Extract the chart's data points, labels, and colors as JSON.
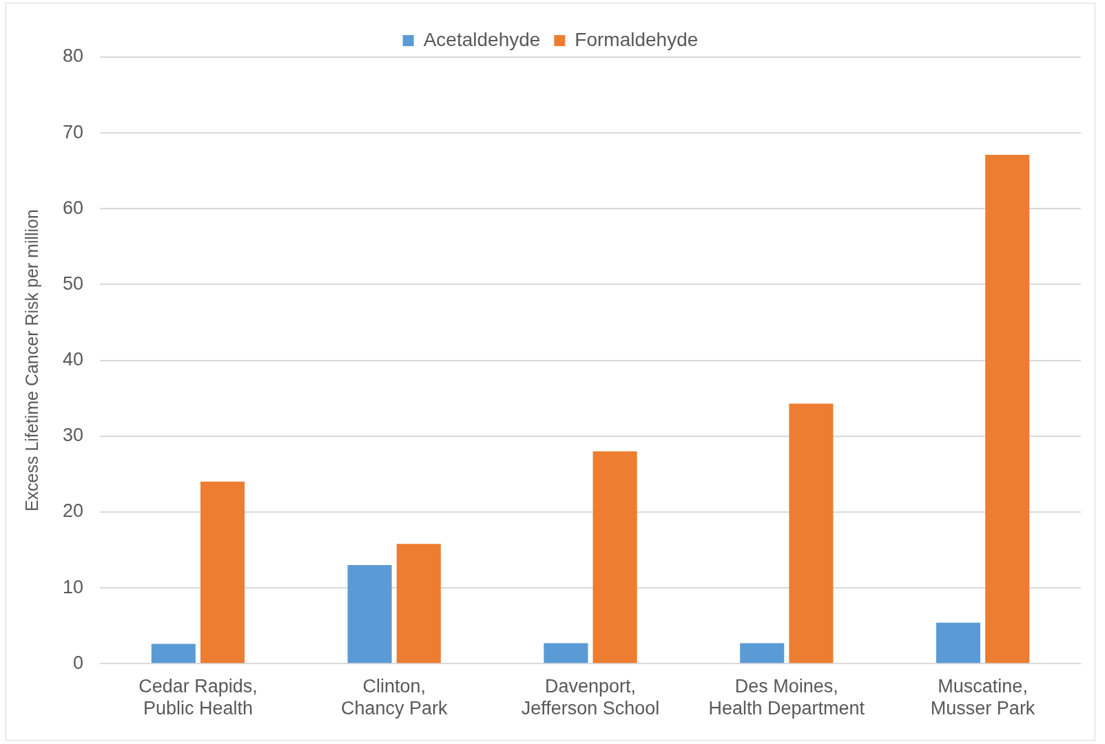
{
  "chart_data": {
    "type": "bar",
    "ylabel": "Excess Lifetime Cancer Risk per million",
    "categories": [
      [
        "Cedar Rapids,",
        "Public Health"
      ],
      [
        "Clinton,",
        "Chancy Park"
      ],
      [
        "Davenport,",
        "Jefferson School"
      ],
      [
        "Des Moines,",
        "Health Department"
      ],
      [
        "Muscatine,",
        "Musser Park"
      ]
    ],
    "series": [
      {
        "name": "Acetaldehyde",
        "color": "#5b9bd5",
        "values": [
          2.6,
          13.0,
          2.7,
          2.7,
          5.4
        ]
      },
      {
        "name": "Formaldehyde",
        "color": "#ed7d31",
        "values": [
          24.0,
          15.8,
          28.0,
          34.3,
          67.1
        ]
      }
    ],
    "ylim": [
      0,
      80
    ],
    "yticks": [
      0,
      10,
      20,
      30,
      40,
      50,
      60,
      70,
      80
    ],
    "grid": "y",
    "legend": "top"
  }
}
